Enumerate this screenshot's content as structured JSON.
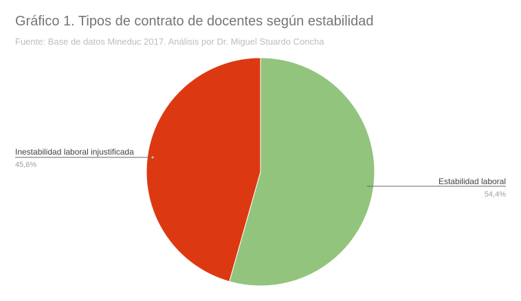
{
  "chart_data": {
    "type": "pie",
    "title": "Gráfico 1. Tipos de contrato de docentes según estabilidad",
    "subtitle": "Fuente: Base de datos Mineduc 2017. Análisis por Dr. Miguel Stuardo Concha",
    "legend": "labels-on-leader-lines",
    "slices": [
      {
        "label": "Estabilidad laboral",
        "value": 54.4,
        "display": "54,4%",
        "color": "#93c47d"
      },
      {
        "label": "Inestabilidad laboral injustificada",
        "value": 45.6,
        "display": "45,6%",
        "color": "#dc3912"
      }
    ]
  }
}
